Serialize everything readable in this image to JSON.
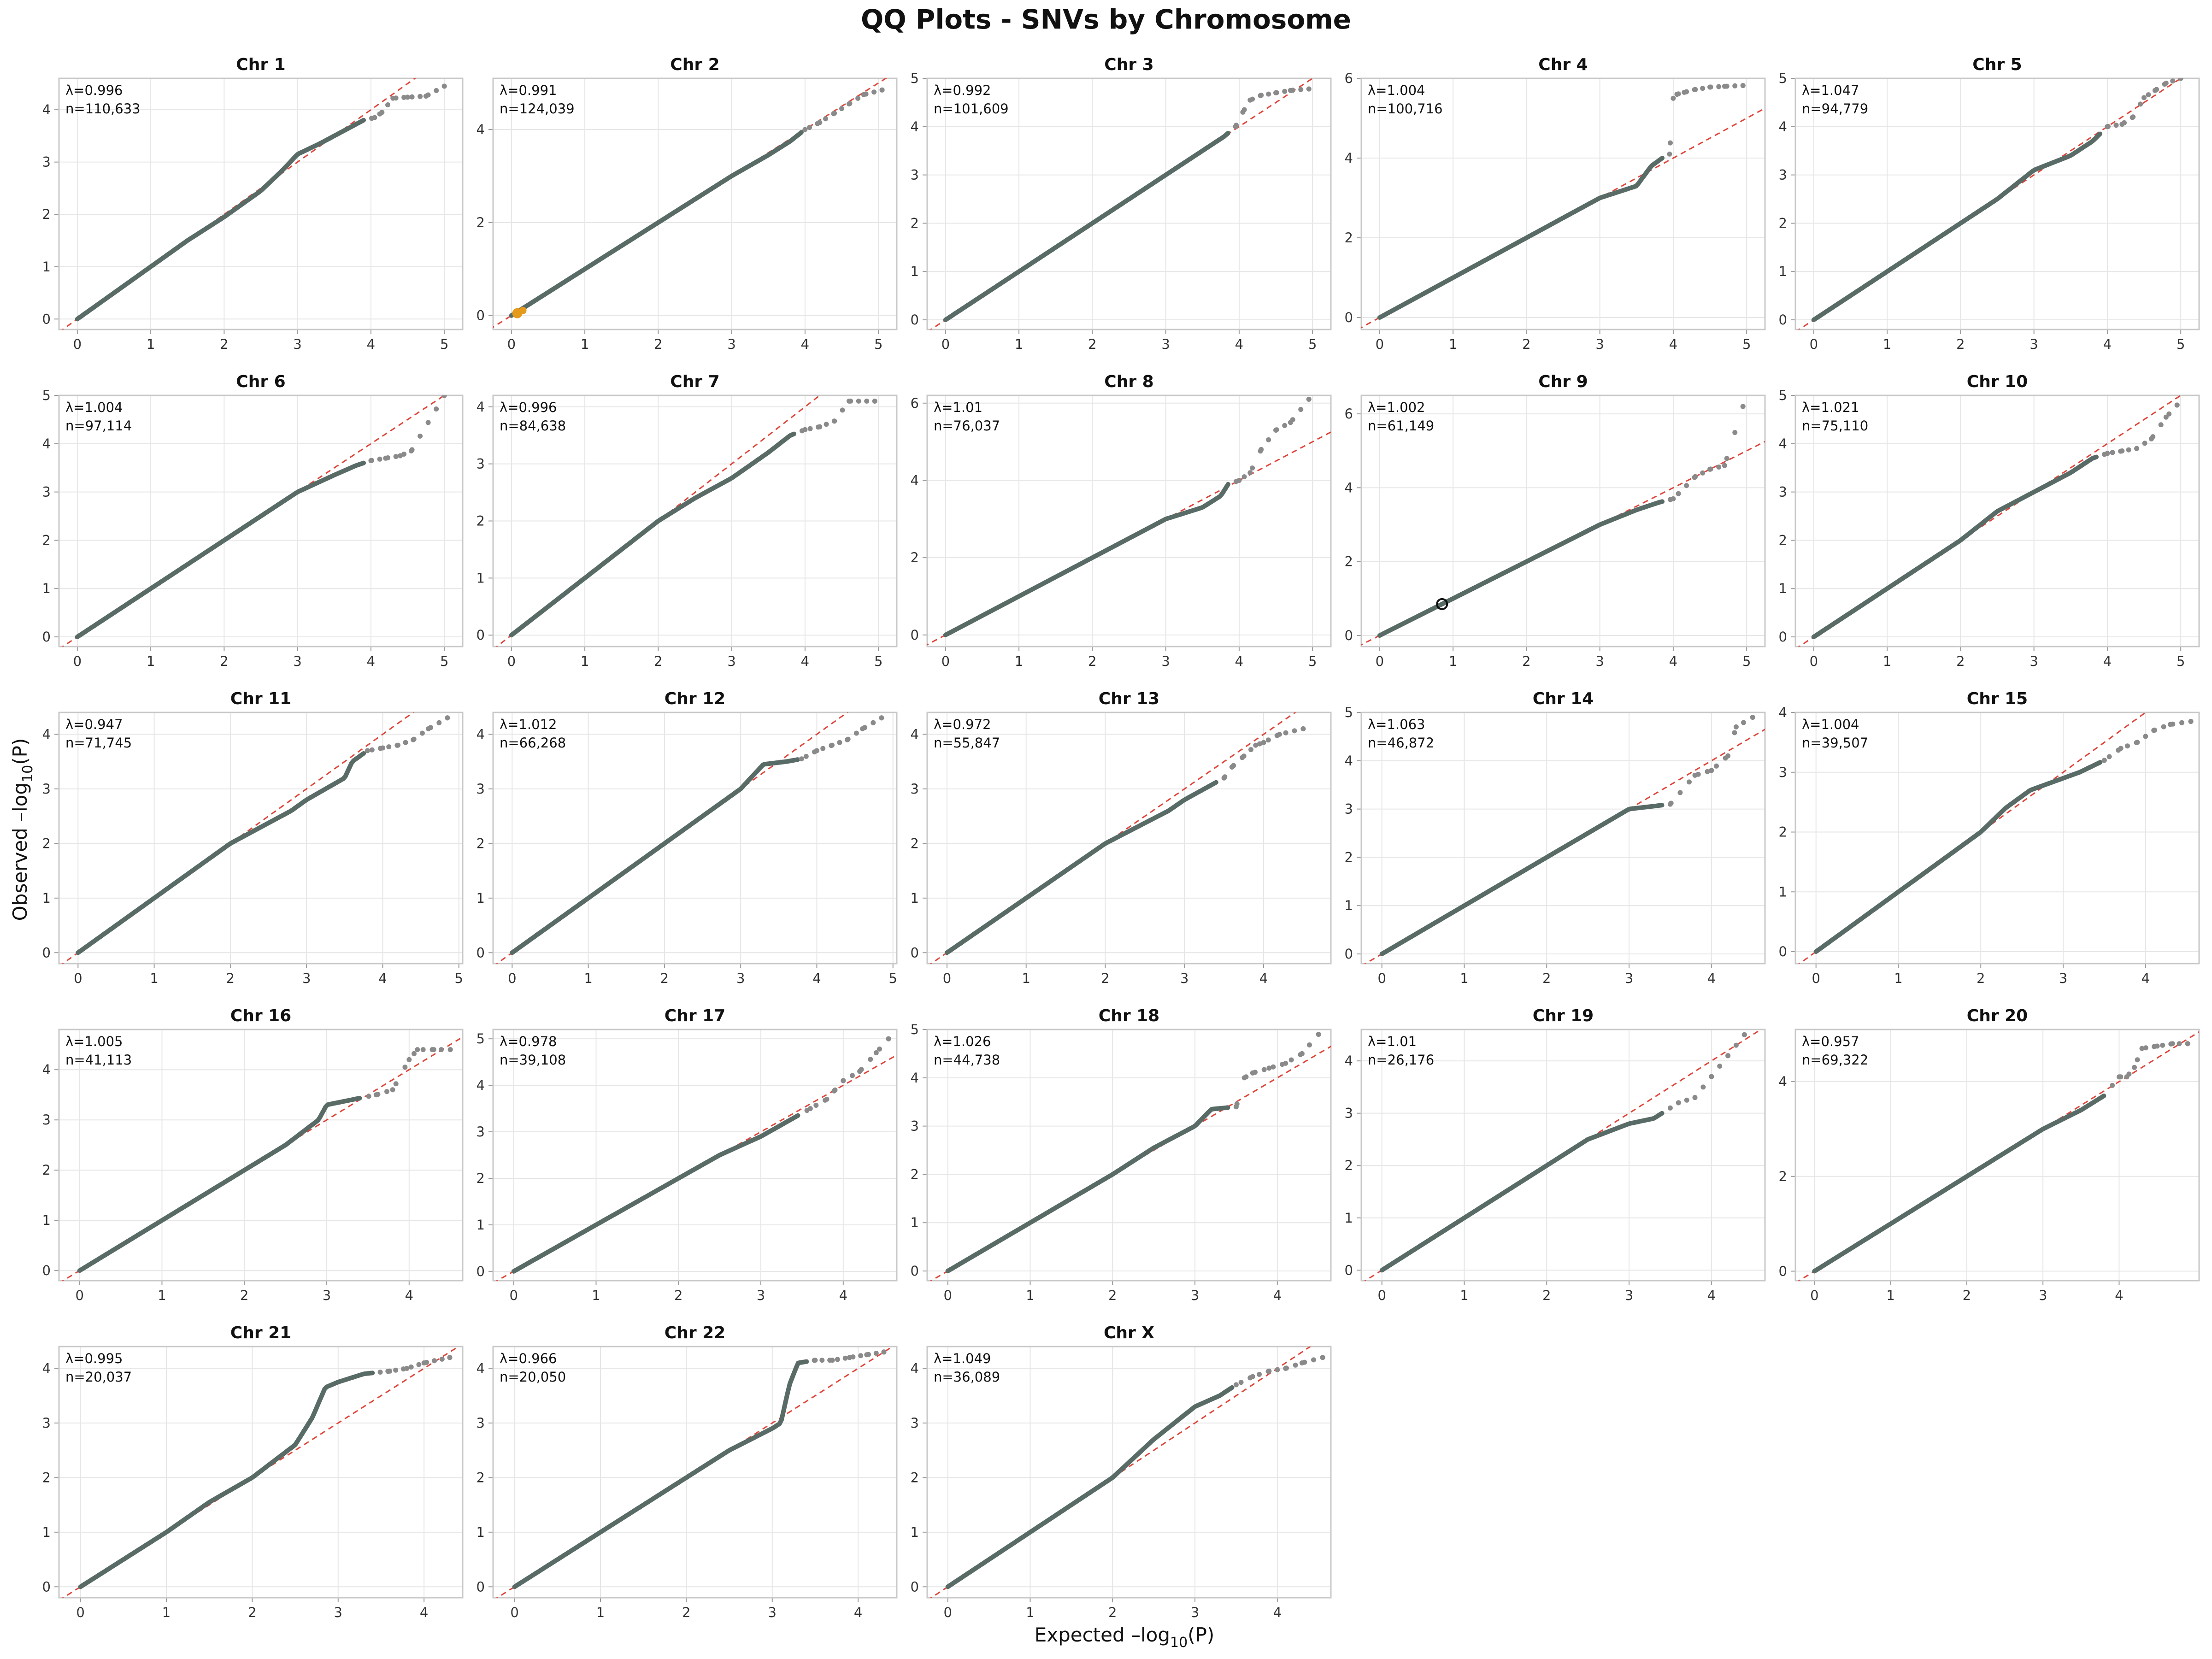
{
  "figure": {
    "title": "QQ Plots - SNVs by Chromosome",
    "xlabel_main": "Expected –log",
    "xlabel_sub": "10",
    "xlabel_tail": "(P)",
    "ylabel_main": "Observed –log",
    "ylabel_sub": "10",
    "ylabel_tail": "(P)"
  },
  "colors": {
    "points": "#5f6b68",
    "tail_points": "#8a8a8a",
    "reference_line": "#e0453a",
    "highlight_orange": "#e69a1c",
    "highlight_ring": "#111111"
  },
  "chart_data": [
    {
      "type": "scatter",
      "title": "Chr 1",
      "lambda_label": "λ=0.996",
      "n_label": "n=110,633",
      "xlim": [
        -0.25,
        5.25
      ],
      "ylim": [
        -0.2,
        4.6
      ],
      "xticks": [
        0,
        1,
        2,
        3,
        4,
        5
      ],
      "yticks": [
        0,
        1,
        2,
        3,
        4
      ],
      "x": [
        0,
        0.5,
        1,
        1.5,
        2,
        2.5,
        2.8,
        3,
        3.3,
        3.5,
        3.7,
        3.9,
        4.05,
        4.15,
        4.3,
        4.5,
        4.75,
        5.0
      ],
      "y": [
        0,
        0.5,
        1,
        1.5,
        1.95,
        2.45,
        2.85,
        3.15,
        3.35,
        3.5,
        3.65,
        3.8,
        3.85,
        3.95,
        4.22,
        4.24,
        4.26,
        4.45
      ]
    },
    {
      "type": "scatter",
      "title": "Chr 2",
      "lambda_label": "λ=0.991",
      "n_label": "n=124,039",
      "xlim": [
        -0.25,
        5.25
      ],
      "ylim": [
        -0.3,
        5.1
      ],
      "xticks": [
        0,
        1,
        2,
        3,
        4,
        5
      ],
      "yticks": [
        0,
        2,
        4
      ],
      "x": [
        0,
        1,
        2,
        3,
        3.5,
        3.8,
        4,
        4.2,
        4.4,
        4.6,
        4.8,
        5.05
      ],
      "y": [
        0,
        1,
        2,
        3,
        3.45,
        3.75,
        4,
        4.15,
        4.35,
        4.55,
        4.75,
        4.85
      ],
      "highlight": {
        "x": 0.08,
        "y": 0.05,
        "style": "orange"
      }
    },
    {
      "type": "scatter",
      "title": "Chr 3",
      "lambda_label": "λ=0.992",
      "n_label": "n=101,609",
      "xlim": [
        -0.25,
        5.25
      ],
      "ylim": [
        -0.2,
        5.0
      ],
      "xticks": [
        0,
        1,
        2,
        3,
        4,
        5
      ],
      "yticks": [
        0,
        1,
        2,
        3,
        4,
        5
      ],
      "x": [
        0,
        1,
        2,
        3,
        3.5,
        3.8,
        3.95,
        4.05,
        4.15,
        4.3,
        4.5,
        4.7,
        4.95
      ],
      "y": [
        0,
        1,
        2,
        3,
        3.5,
        3.8,
        4.0,
        4.3,
        4.55,
        4.65,
        4.7,
        4.75,
        4.78
      ]
    },
    {
      "type": "scatter",
      "title": "Chr 4",
      "lambda_label": "λ=1.004",
      "n_label": "n=100,716",
      "xlim": [
        -0.25,
        5.25
      ],
      "ylim": [
        -0.3,
        6.0
      ],
      "xticks": [
        0,
        1,
        2,
        3,
        4,
        5
      ],
      "yticks": [
        0,
        2,
        4,
        6
      ],
      "x": [
        0,
        1,
        2,
        3,
        3.5,
        3.7,
        3.85,
        3.95,
        4.0,
        4.05,
        4.15,
        4.3,
        4.5,
        4.7,
        4.95
      ],
      "y": [
        0,
        1,
        2,
        3,
        3.3,
        3.8,
        4.0,
        4.1,
        5.5,
        5.6,
        5.65,
        5.72,
        5.78,
        5.8,
        5.82
      ]
    },
    {
      "type": "scatter",
      "title": "Chr 5",
      "lambda_label": "λ=1.047",
      "n_label": "n=94,779",
      "xlim": [
        -0.25,
        5.25
      ],
      "ylim": [
        -0.2,
        5.0
      ],
      "xticks": [
        0,
        1,
        2,
        3,
        4,
        5
      ],
      "yticks": [
        0,
        1,
        2,
        3,
        4,
        5
      ],
      "x": [
        0,
        1,
        2,
        2.5,
        3,
        3.5,
        3.8,
        4,
        4.2,
        4.35,
        4.5,
        4.65,
        4.8,
        5.0
      ],
      "y": [
        0,
        1,
        2,
        2.5,
        3.1,
        3.4,
        3.7,
        4.0,
        4.05,
        4.2,
        4.6,
        4.75,
        4.9,
        5.0
      ]
    },
    {
      "type": "scatter",
      "title": "Chr 6",
      "lambda_label": "λ=1.004",
      "n_label": "n=97,114",
      "xlim": [
        -0.25,
        5.25
      ],
      "ylim": [
        -0.2,
        5.0
      ],
      "xticks": [
        0,
        1,
        2,
        3,
        4,
        5
      ],
      "yticks": [
        0,
        1,
        2,
        3,
        4,
        5
      ],
      "x": [
        0,
        1,
        2,
        2.8,
        3,
        3.5,
        3.8,
        4,
        4.2,
        4.4,
        4.55,
        5.0
      ],
      "y": [
        0,
        1,
        2,
        2.8,
        3.0,
        3.35,
        3.55,
        3.65,
        3.7,
        3.75,
        3.85,
        5.0
      ]
    },
    {
      "type": "scatter",
      "title": "Chr 7",
      "lambda_label": "λ=0.996",
      "n_label": "n=84,638",
      "xlim": [
        -0.25,
        5.25
      ],
      "ylim": [
        -0.2,
        4.2
      ],
      "xticks": [
        0,
        1,
        2,
        3,
        4,
        5
      ],
      "yticks": [
        0,
        1,
        2,
        3,
        4
      ],
      "x": [
        0,
        1,
        2,
        2.5,
        3,
        3.5,
        3.8,
        4,
        4.2,
        4.4,
        4.6,
        4.95
      ],
      "y": [
        0,
        1,
        2,
        2.4,
        2.75,
        3.2,
        3.5,
        3.6,
        3.65,
        3.75,
        4.1,
        4.1
      ]
    },
    {
      "type": "scatter",
      "title": "Chr 8",
      "lambda_label": "λ=1.01",
      "n_label": "n=76,037",
      "xlim": [
        -0.25,
        5.25
      ],
      "ylim": [
        -0.3,
        6.2
      ],
      "xticks": [
        0,
        1,
        2,
        3,
        4,
        5
      ],
      "yticks": [
        0,
        2,
        4,
        6
      ],
      "x": [
        0,
        1,
        2,
        3,
        3.5,
        3.75,
        3.85,
        4.0,
        4.15,
        4.3,
        4.5,
        4.7,
        4.95
      ],
      "y": [
        0,
        1,
        2,
        3,
        3.3,
        3.6,
        3.9,
        4.0,
        4.2,
        4.8,
        5.3,
        5.5,
        6.1
      ]
    },
    {
      "type": "scatter",
      "title": "Chr 9",
      "lambda_label": "λ=1.002",
      "n_label": "n=61,149",
      "xlim": [
        -0.25,
        5.25
      ],
      "ylim": [
        -0.3,
        6.5
      ],
      "xticks": [
        0,
        1,
        2,
        3,
        4,
        5
      ],
      "yticks": [
        0,
        2,
        4,
        6
      ],
      "x": [
        0,
        1,
        2,
        3,
        3.5,
        3.8,
        4.0,
        4.3,
        4.5,
        4.7,
        4.95
      ],
      "y": [
        0,
        1,
        2,
        3,
        3.4,
        3.6,
        3.7,
        4.3,
        4.5,
        4.6,
        6.2
      ],
      "highlight": {
        "x": 0.85,
        "y": 0.85,
        "style": "ring"
      }
    },
    {
      "type": "scatter",
      "title": "Chr 10",
      "lambda_label": "λ=1.021",
      "n_label": "n=75,110",
      "xlim": [
        -0.25,
        5.25
      ],
      "ylim": [
        -0.2,
        5.0
      ],
      "xticks": [
        0,
        1,
        2,
        3,
        4,
        5
      ],
      "yticks": [
        0,
        1,
        2,
        3,
        4,
        5
      ],
      "x": [
        0,
        1,
        2,
        2.5,
        3,
        3.5,
        3.8,
        4,
        4.2,
        4.4,
        4.6,
        4.8,
        4.95
      ],
      "y": [
        0,
        1,
        2,
        2.6,
        3.0,
        3.4,
        3.7,
        3.8,
        3.85,
        3.9,
        4.1,
        4.55,
        4.8
      ]
    },
    {
      "type": "scatter",
      "title": "Chr 11",
      "lambda_label": "λ=0.947",
      "n_label": "n=71,745",
      "xlim": [
        -0.25,
        5.05
      ],
      "ylim": [
        -0.2,
        4.4
      ],
      "xticks": [
        0,
        1,
        2,
        3,
        4,
        5
      ],
      "yticks": [
        0,
        1,
        2,
        3,
        4
      ],
      "x": [
        0,
        1,
        2,
        2.8,
        3.0,
        3.5,
        3.6,
        3.8,
        4.0,
        4.2,
        4.4,
        4.6,
        4.85
      ],
      "y": [
        0,
        1,
        2,
        2.6,
        2.8,
        3.2,
        3.5,
        3.7,
        3.75,
        3.8,
        3.9,
        4.1,
        4.3
      ]
    },
    {
      "type": "scatter",
      "title": "Chr 12",
      "lambda_label": "λ=1.012",
      "n_label": "n=66,268",
      "xlim": [
        -0.25,
        5.05
      ],
      "ylim": [
        -0.2,
        4.4
      ],
      "xticks": [
        0,
        1,
        2,
        3,
        4,
        5
      ],
      "yticks": [
        0,
        1,
        2,
        3,
        4
      ],
      "x": [
        0,
        1,
        2,
        3,
        3.3,
        3.6,
        3.8,
        4.0,
        4.2,
        4.4,
        4.6,
        4.85
      ],
      "y": [
        0,
        1,
        2,
        3,
        3.45,
        3.5,
        3.55,
        3.7,
        3.8,
        3.9,
        4.1,
        4.3
      ]
    },
    {
      "type": "scatter",
      "title": "Chr 13",
      "lambda_label": "λ=0.972",
      "n_label": "n=55,847",
      "xlim": [
        -0.25,
        4.85
      ],
      "ylim": [
        -0.2,
        4.4
      ],
      "xticks": [
        0,
        1,
        2,
        3,
        4
      ],
      "yticks": [
        0,
        1,
        2,
        3,
        4
      ],
      "x": [
        0,
        1,
        2,
        2.8,
        3.0,
        3.5,
        3.6,
        3.75,
        3.9,
        4.0,
        4.2,
        4.5
      ],
      "y": [
        0,
        1,
        2,
        2.6,
        2.8,
        3.2,
        3.4,
        3.6,
        3.8,
        3.85,
        4.0,
        4.1
      ]
    },
    {
      "type": "scatter",
      "title": "Chr 14",
      "lambda_label": "λ=1.063",
      "n_label": "n=46,872",
      "xlim": [
        -0.25,
        4.65
      ],
      "ylim": [
        -0.2,
        5.0
      ],
      "xticks": [
        0,
        1,
        2,
        3,
        4
      ],
      "yticks": [
        0,
        1,
        2,
        3,
        4,
        5
      ],
      "x": [
        0,
        1,
        2,
        2.5,
        3,
        3.5,
        3.8,
        4.0,
        4.2,
        4.3,
        4.5
      ],
      "y": [
        0,
        1,
        2,
        2.5,
        3.0,
        3.1,
        3.7,
        3.8,
        4.1,
        4.7,
        4.9
      ]
    },
    {
      "type": "scatter",
      "title": "Chr 15",
      "lambda_label": "λ=1.004",
      "n_label": "n=39,507",
      "xlim": [
        -0.25,
        4.65
      ],
      "ylim": [
        -0.2,
        4.0
      ],
      "xticks": [
        0,
        1,
        2,
        3,
        4
      ],
      "yticks": [
        0,
        1,
        2,
        3,
        4
      ],
      "x": [
        0,
        1,
        2,
        2.3,
        2.6,
        3.0,
        3.2,
        3.5,
        3.7,
        3.9,
        4.1,
        4.3,
        4.55
      ],
      "y": [
        0,
        1,
        2,
        2.4,
        2.7,
        2.9,
        3.0,
        3.2,
        3.4,
        3.5,
        3.7,
        3.8,
        3.85
      ]
    },
    {
      "type": "scatter",
      "title": "Chr 16",
      "lambda_label": "λ=1.005",
      "n_label": "n=41,113",
      "xlim": [
        -0.25,
        4.65
      ],
      "ylim": [
        -0.2,
        4.8
      ],
      "xticks": [
        0,
        1,
        2,
        3,
        4
      ],
      "yticks": [
        0,
        1,
        2,
        3,
        4
      ],
      "x": [
        0,
        1,
        2,
        2.5,
        2.9,
        3.0,
        3.3,
        3.6,
        3.8,
        4.0,
        4.1,
        4.3,
        4.5
      ],
      "y": [
        0,
        1,
        2,
        2.5,
        3.0,
        3.3,
        3.4,
        3.5,
        3.6,
        4.2,
        4.4,
        4.4,
        4.4
      ]
    },
    {
      "type": "scatter",
      "title": "Chr 17",
      "lambda_label": "λ=0.978",
      "n_label": "n=39,108",
      "xlim": [
        -0.25,
        4.65
      ],
      "ylim": [
        -0.2,
        5.2
      ],
      "xticks": [
        0,
        1,
        2,
        3,
        4
      ],
      "yticks": [
        0,
        1,
        2,
        3,
        4,
        5
      ],
      "x": [
        0,
        1,
        2,
        2.5,
        3,
        3.3,
        3.6,
        3.8,
        3.9,
        4.0,
        4.2,
        4.4,
        4.55
      ],
      "y": [
        0,
        1,
        2,
        2.5,
        2.9,
        3.2,
        3.5,
        3.7,
        3.9,
        4.1,
        4.3,
        4.7,
        5.0
      ]
    },
    {
      "type": "scatter",
      "title": "Chr 18",
      "lambda_label": "λ=1.026",
      "n_label": "n=44,738",
      "xlim": [
        -0.25,
        4.65
      ],
      "ylim": [
        -0.2,
        5.0
      ],
      "xticks": [
        0,
        1,
        2,
        3,
        4
      ],
      "yticks": [
        0,
        1,
        2,
        3,
        4,
        5
      ],
      "x": [
        0,
        1,
        2,
        2.5,
        3,
        3.2,
        3.5,
        3.6,
        3.7,
        3.9,
        4.1,
        4.3,
        4.5
      ],
      "y": [
        0,
        1,
        2,
        2.55,
        3.0,
        3.35,
        3.4,
        4.0,
        4.1,
        4.2,
        4.3,
        4.5,
        4.9
      ]
    },
    {
      "type": "scatter",
      "title": "Chr 19",
      "lambda_label": "λ=1.01",
      "n_label": "n=26,176",
      "xlim": [
        -0.25,
        4.65
      ],
      "ylim": [
        -0.2,
        4.6
      ],
      "xticks": [
        0,
        1,
        2,
        3,
        4
      ],
      "yticks": [
        0,
        1,
        2,
        3,
        4
      ],
      "x": [
        0,
        1,
        2,
        2.5,
        3,
        3.3,
        3.6,
        3.8,
        4.0,
        4.2,
        4.4
      ],
      "y": [
        0,
        1,
        2,
        2.5,
        2.8,
        2.9,
        3.2,
        3.3,
        3.7,
        4.1,
        4.5
      ]
    },
    {
      "type": "scatter",
      "title": "Chr 20",
      "lambda_label": "λ=0.957",
      "n_label": "n=69,322",
      "xlim": [
        -0.25,
        5.05
      ],
      "ylim": [
        -0.2,
        5.1
      ],
      "xticks": [
        0,
        1,
        2,
        3,
        4
      ],
      "yticks": [
        0,
        2,
        4
      ],
      "x": [
        0,
        1,
        2,
        2.5,
        3,
        3.5,
        3.8,
        4.0,
        4.1,
        4.2,
        4.3,
        4.5,
        4.7,
        4.9
      ],
      "y": [
        0,
        1,
        2,
        2.5,
        3.0,
        3.4,
        3.7,
        4.1,
        4.1,
        4.3,
        4.7,
        4.75,
        4.8,
        4.8
      ]
    },
    {
      "type": "scatter",
      "title": "Chr 21",
      "lambda_label": "λ=0.995",
      "n_label": "n=20,037",
      "xlim": [
        -0.25,
        4.45
      ],
      "ylim": [
        -0.2,
        4.4
      ],
      "xticks": [
        0,
        1,
        2,
        3,
        4
      ],
      "yticks": [
        0,
        1,
        2,
        3,
        4
      ],
      "x": [
        0,
        1,
        1.5,
        2.0,
        2.5,
        2.7,
        2.85,
        3.0,
        3.3,
        3.6,
        3.8,
        4.0,
        4.3
      ],
      "y": [
        0,
        1,
        1.55,
        2.0,
        2.6,
        3.1,
        3.65,
        3.75,
        3.9,
        3.95,
        4.0,
        4.1,
        4.2
      ]
    },
    {
      "type": "scatter",
      "title": "Chr 22",
      "lambda_label": "λ=0.966",
      "n_label": "n=20,050",
      "xlim": [
        -0.25,
        4.45
      ],
      "ylim": [
        -0.2,
        4.4
      ],
      "xticks": [
        0,
        1,
        2,
        3,
        4
      ],
      "yticks": [
        0,
        1,
        2,
        3,
        4
      ],
      "x": [
        0,
        1,
        2,
        2.5,
        3,
        3.1,
        3.2,
        3.3,
        3.5,
        3.7,
        3.9,
        4.1,
        4.3
      ],
      "y": [
        0,
        1,
        2,
        2.5,
        2.9,
        3.0,
        3.7,
        4.1,
        4.15,
        4.15,
        4.2,
        4.25,
        4.3
      ]
    },
    {
      "type": "scatter",
      "title": "Chr X",
      "lambda_label": "λ=1.049",
      "n_label": "n=36,089",
      "xlim": [
        -0.25,
        4.65
      ],
      "ylim": [
        -0.2,
        4.4
      ],
      "xticks": [
        0,
        1,
        2,
        3,
        4
      ],
      "yticks": [
        0,
        1,
        2,
        3,
        4
      ],
      "x": [
        0,
        1,
        2,
        2.5,
        3,
        3.3,
        3.5,
        3.7,
        3.9,
        4.1,
        4.3,
        4.55
      ],
      "y": [
        0,
        1,
        2,
        2.7,
        3.3,
        3.5,
        3.7,
        3.85,
        3.95,
        4.0,
        4.1,
        4.2
      ]
    }
  ]
}
